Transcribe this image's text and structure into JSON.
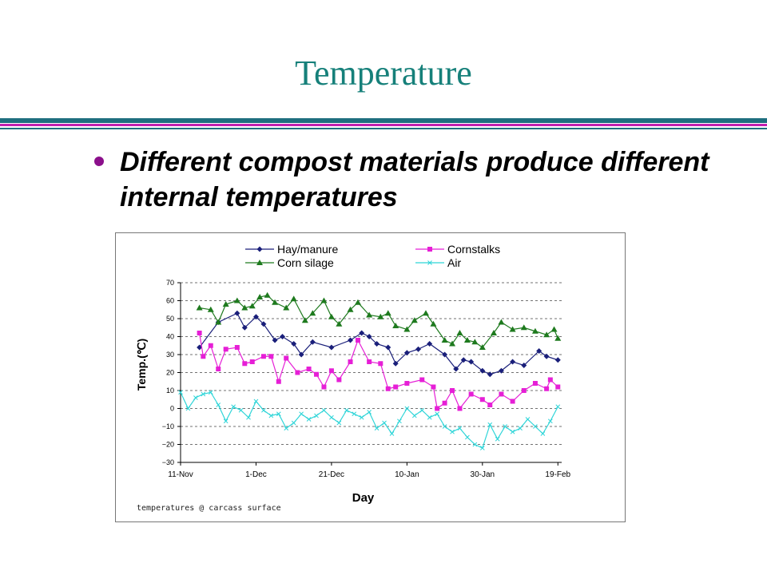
{
  "slide": {
    "title": "Temperature",
    "bullet": "Different compost materials produce different internal temperatures",
    "caption": "temperatures @ carcass surface",
    "colors": {
      "title": "#16807a",
      "bullet": "#8b0f8b",
      "rule_teal": "#1f6f7f",
      "rule_magenta": "#c11fb0"
    }
  },
  "chart_data": {
    "type": "line",
    "xlabel": "Day",
    "ylabel": "Temp.(℃)",
    "ylim": [
      -30,
      70
    ],
    "yticks": [
      -30,
      -20,
      -10,
      0,
      10,
      20,
      30,
      40,
      50,
      60,
      70
    ],
    "xtick_labels": [
      "11-Nov",
      "1-Dec",
      "21-Dec",
      "10-Jan",
      "30-Jan",
      "19-Feb"
    ],
    "xtick_days": [
      0,
      20,
      40,
      60,
      80,
      100
    ],
    "grid": "horizontal dashed",
    "legend": "top",
    "series": [
      {
        "name": "Hay/manure",
        "color": "#1a1f7a",
        "marker": "diamond",
        "x": [
          5,
          10,
          15,
          17,
          20,
          22,
          25,
          27,
          30,
          32,
          35,
          40,
          45,
          48,
          50,
          52,
          55,
          57,
          60,
          63,
          66,
          70,
          73,
          75,
          77,
          80,
          82,
          85,
          88,
          91,
          95,
          97,
          100
        ],
        "y": [
          34,
          48,
          53,
          45,
          51,
          47,
          38,
          40,
          36,
          30,
          37,
          34,
          38,
          42,
          40,
          36,
          34,
          25,
          31,
          33,
          36,
          30,
          22,
          27,
          26,
          21,
          19,
          21,
          26,
          24,
          32,
          29,
          27
        ]
      },
      {
        "name": "Cornstalks",
        "color": "#e61fd6",
        "marker": "square",
        "x": [
          5,
          6,
          8,
          10,
          12,
          15,
          17,
          19,
          22,
          24,
          26,
          28,
          31,
          34,
          36,
          38,
          40,
          42,
          45,
          47,
          50,
          53,
          55,
          57,
          60,
          64,
          67,
          68,
          70,
          72,
          74,
          77,
          80,
          82,
          85,
          88,
          91,
          94,
          97,
          98,
          100
        ],
        "y": [
          42,
          29,
          35,
          22,
          33,
          34,
          25,
          26,
          29,
          29,
          15,
          28,
          20,
          22,
          19,
          12,
          21,
          16,
          26,
          38,
          26,
          25,
          11,
          12,
          14,
          16,
          12,
          0,
          3,
          10,
          0,
          8,
          5,
          2,
          8,
          4,
          10,
          14,
          11,
          16,
          12
        ]
      },
      {
        "name": "Corn silage",
        "color": "#1e7a1e",
        "marker": "triangle",
        "x": [
          5,
          8,
          10,
          12,
          15,
          17,
          19,
          21,
          23,
          25,
          28,
          30,
          33,
          35,
          38,
          40,
          42,
          45,
          47,
          50,
          53,
          55,
          57,
          60,
          62,
          65,
          67,
          70,
          72,
          74,
          76,
          78,
          80,
          83,
          85,
          88,
          91,
          94,
          97,
          99,
          100
        ],
        "y": [
          56,
          55,
          48,
          58,
          60,
          56,
          57,
          62,
          63,
          59,
          56,
          61,
          49,
          53,
          60,
          51,
          47,
          55,
          59,
          52,
          51,
          53,
          46,
          44,
          49,
          53,
          47,
          38,
          36,
          42,
          38,
          37,
          34,
          42,
          48,
          44,
          45,
          43,
          41,
          44,
          39
        ]
      },
      {
        "name": "Air",
        "color": "#2fd5d8",
        "marker": "x",
        "x": [
          0,
          2,
          4,
          6,
          8,
          10,
          12,
          14,
          16,
          18,
          20,
          22,
          24,
          26,
          28,
          30,
          32,
          34,
          36,
          38,
          40,
          42,
          44,
          46,
          48,
          50,
          52,
          54,
          56,
          58,
          60,
          62,
          64,
          66,
          68,
          70,
          72,
          74,
          76,
          78,
          80,
          82,
          84,
          86,
          88,
          90,
          92,
          94,
          96,
          98,
          100
        ],
        "y": [
          9,
          0,
          6,
          8,
          9,
          2,
          -7,
          1,
          -1,
          -5,
          4,
          -1,
          -4,
          -3,
          -11,
          -8,
          -3,
          -6,
          -4,
          -1,
          -5,
          -8,
          -1,
          -3,
          -5,
          -2,
          -11,
          -8,
          -14,
          -7,
          0,
          -4,
          -1,
          -5,
          -3,
          -10,
          -13,
          -11,
          -16,
          -20,
          -22,
          -9,
          -17,
          -10,
          -13,
          -11,
          -6,
          -10,
          -14,
          -7,
          1
        ]
      }
    ]
  }
}
